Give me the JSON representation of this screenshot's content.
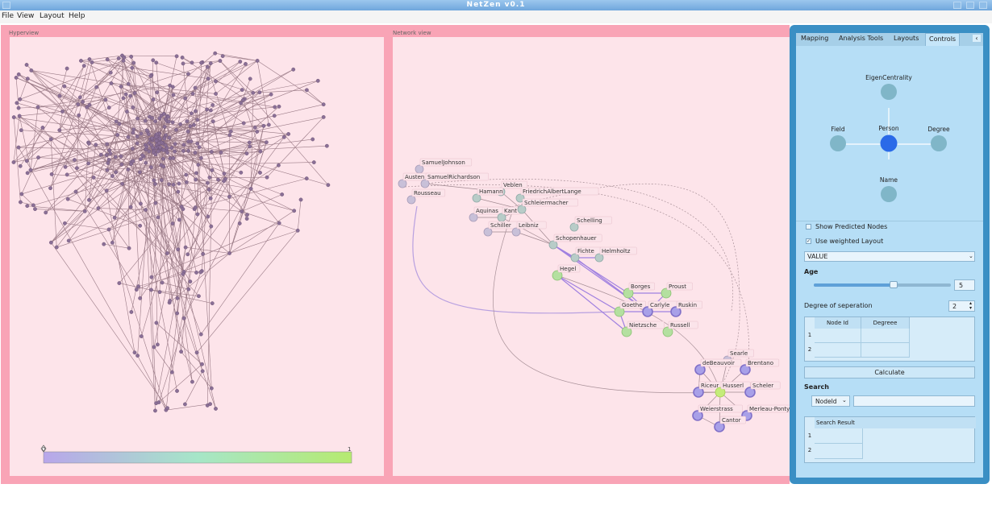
{
  "window": {
    "title": "NetZen v0.1"
  },
  "menu": [
    "File",
    "View",
    "Layout",
    "Help"
  ],
  "panels": {
    "left_title": "Hyperview",
    "mid_title": "Network view"
  },
  "colorbar": {
    "min": "0",
    "max": "1"
  },
  "mid_labels": [
    "SamuelJohnson",
    "Austen",
    "SamuelRichardson",
    "Rousseau",
    "Veblen",
    "Hamann",
    "FriedrichAlbertLange",
    "Aquinas",
    "Kant",
    "Schleiermacher",
    "Schiller",
    "Leibniz",
    "Schelling",
    "Schopenhauer",
    "Fichte",
    "Helmholtz",
    "Hegel",
    "Borges",
    "Proust",
    "Goethe",
    "Carlyle",
    "Ruskin",
    "Nietzsche",
    "Russell",
    "Searle",
    "deBeauvoir",
    "Brentano",
    "Riceur",
    "Husserl",
    "Scheler",
    "Weierstrass",
    "Merleau-Ponty",
    "Cantor"
  ],
  "controls": {
    "tabs": [
      "Mapping",
      "Analysis Tools",
      "Layouts",
      "Controls"
    ],
    "active_tab": "Controls",
    "tab_arrow": "‹",
    "star": {
      "top": "EigenCentrality",
      "left": "Field",
      "center": "Person",
      "right": "Degree",
      "bottom": "Name"
    },
    "show_predicted": "Show Predicted Nodes",
    "use_weighted": "Use weighted Layout",
    "use_weighted_checked": true,
    "value_select": "VALUE",
    "age_label": "Age",
    "age_value": "5",
    "age_slider": 0.58,
    "degree_sep_label": "Degree of seperation",
    "degree_sep_value": "2",
    "table1": {
      "headers": [
        "Node Id",
        "Degreee"
      ],
      "rows": [
        "1",
        "2"
      ]
    },
    "calculate": "Calculate",
    "search_label": "Search",
    "search_field": "NodeId",
    "search_value": "",
    "table2": {
      "headers": [
        "Search Result"
      ],
      "rows": [
        "1",
        "2"
      ]
    }
  },
  "colors": {
    "frame": "#f9a4b6",
    "canvas": "#fde4ea",
    "controls_border": "#3a8fc4",
    "controls_bg": "#b6def6",
    "selected_node": "#2a6ae8"
  }
}
